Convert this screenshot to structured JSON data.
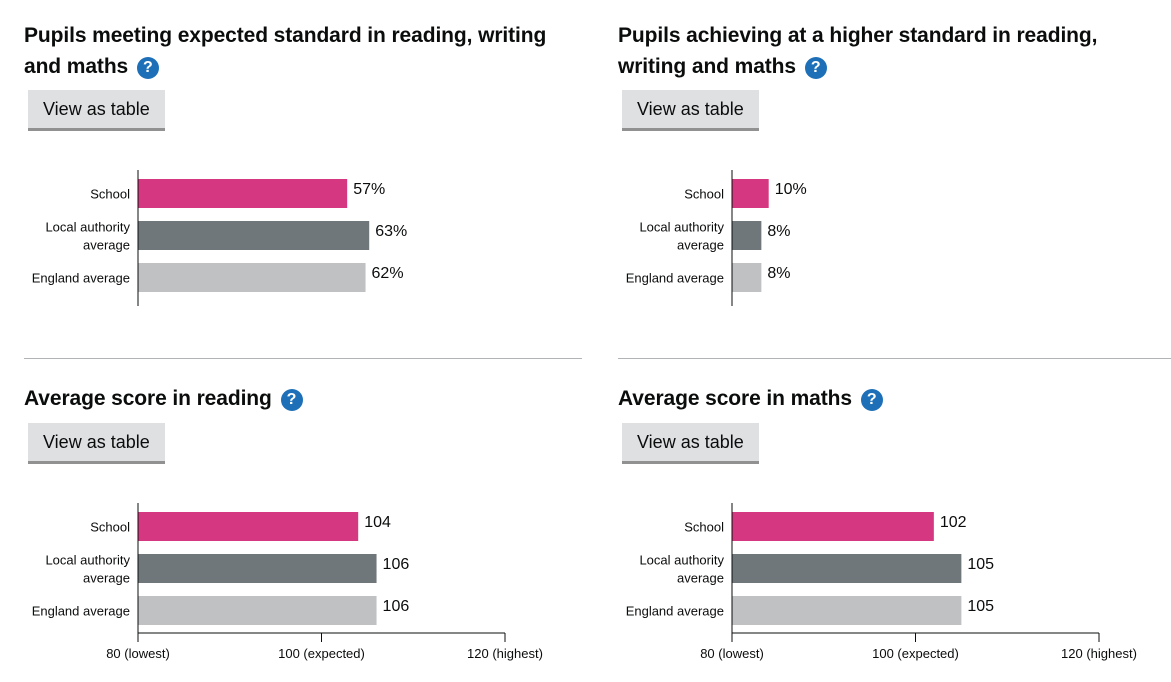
{
  "legend_label_colors": {
    "School": "#d53880",
    "Local authority average": "#6f777b",
    "England average": "#bfc1c3"
  },
  "help_icon": "question-mark-icon",
  "panels": [
    {
      "title": "Pupils meeting expected standard in reading, writing and maths",
      "title_lines": [
        "Pupils meeting expected standard in reading, writing",
        "and maths"
      ],
      "button_label": "View as table"
    },
    {
      "title": "Pupils achieving at a higher standard in reading, writing and maths",
      "title_lines": [
        "Pupils achieving at a higher standard in reading,",
        "writing and maths"
      ],
      "button_label": "View as table"
    },
    {
      "title": "Average score in reading",
      "title_lines": [
        "Average score in reading"
      ],
      "button_label": "View as table"
    },
    {
      "title": "Average score in maths",
      "title_lines": [
        "Average score in maths"
      ],
      "button_label": "View as table"
    }
  ],
  "chart_data": [
    {
      "type": "bar",
      "orientation": "horizontal",
      "title": "Pupils meeting expected standard in reading, writing and maths",
      "categories": [
        [
          "School"
        ],
        [
          "Local authority",
          "average"
        ],
        [
          "England average"
        ]
      ],
      "values": [
        57,
        63,
        62
      ],
      "value_labels": [
        "57%",
        "63%",
        "62%"
      ],
      "colors": [
        "#d53880",
        "#6f777b",
        "#bfc1c3"
      ],
      "xlim": [
        0,
        100
      ],
      "ticks": [],
      "tick_labels": [],
      "grid": false
    },
    {
      "type": "bar",
      "orientation": "horizontal",
      "title": "Pupils achieving at a higher standard in reading, writing and maths",
      "categories": [
        [
          "School"
        ],
        [
          "Local authority",
          "average"
        ],
        [
          "England average"
        ]
      ],
      "values": [
        10,
        8,
        8
      ],
      "value_labels": [
        "10%",
        "8%",
        "8%"
      ],
      "colors": [
        "#d53880",
        "#6f777b",
        "#bfc1c3"
      ],
      "xlim": [
        0,
        100
      ],
      "ticks": [],
      "tick_labels": [],
      "grid": false
    },
    {
      "type": "bar",
      "orientation": "horizontal",
      "title": "Average score in reading",
      "categories": [
        [
          "School"
        ],
        [
          "Local authority",
          "average"
        ],
        [
          "England average"
        ]
      ],
      "values": [
        104,
        106,
        106
      ],
      "value_labels": [
        "104",
        "106",
        "106"
      ],
      "colors": [
        "#d53880",
        "#6f777b",
        "#bfc1c3"
      ],
      "xlim": [
        80,
        120
      ],
      "ticks": [
        80,
        100,
        120
      ],
      "tick_labels": [
        "80 (lowest)",
        "100 (expected)",
        "120 (highest)"
      ],
      "grid": false
    },
    {
      "type": "bar",
      "orientation": "horizontal",
      "title": "Average score in maths",
      "categories": [
        [
          "School"
        ],
        [
          "Local authority",
          "average"
        ],
        [
          "England average"
        ]
      ],
      "values": [
        102,
        105,
        105
      ],
      "value_labels": [
        "102",
        "105",
        "105"
      ],
      "colors": [
        "#d53880",
        "#6f777b",
        "#bfc1c3"
      ],
      "xlim": [
        80,
        120
      ],
      "ticks": [
        80,
        100,
        120
      ],
      "tick_labels": [
        "80 (lowest)",
        "100 (expected)",
        "120 (highest)"
      ],
      "grid": false
    }
  ]
}
